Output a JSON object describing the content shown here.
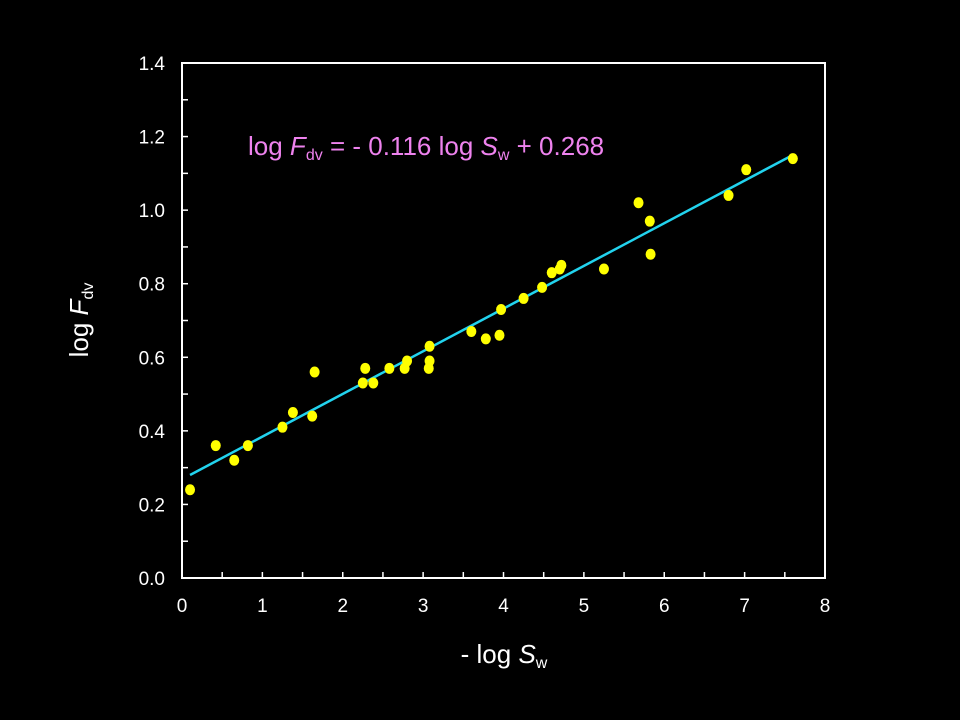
{
  "chart_data": {
    "type": "scatter",
    "xlim": [
      0,
      8
    ],
    "ylim": [
      0,
      1.4
    ],
    "xticks": [
      "0",
      "1",
      "2",
      "3",
      "4",
      "5",
      "6",
      "7",
      "8"
    ],
    "yticks": [
      "0.0",
      "0.2",
      "0.4",
      "0.6",
      "0.8",
      "1.0",
      "1.2",
      "1.4"
    ],
    "xlabel": {
      "prefix": "- log ",
      "var": "S",
      "sub": "w"
    },
    "ylabel": {
      "prefix": "log ",
      "var": "F",
      "sub": "dv"
    },
    "equation": {
      "p1": "log ",
      "v1": "F",
      "s1": "dv",
      "p2": " = - 0.116 log ",
      "v2": "S",
      "s2": "w",
      "p3": " + 0.268"
    },
    "fit_line": {
      "x": [
        0.1,
        7.6
      ],
      "y": [
        0.28,
        1.15
      ]
    },
    "points": {
      "x": [
        0.1,
        0.42,
        0.65,
        0.82,
        1.25,
        1.38,
        1.62,
        1.65,
        2.25,
        2.28,
        2.38,
        2.58,
        2.77,
        2.8,
        3.07,
        3.08,
        3.08,
        3.6,
        3.78,
        3.95,
        3.97,
        4.25,
        4.48,
        4.6,
        4.7,
        4.72,
        5.25,
        5.68,
        5.82,
        5.83,
        6.8,
        7.02,
        7.6
      ],
      "y": [
        0.24,
        0.36,
        0.32,
        0.36,
        0.41,
        0.45,
        0.44,
        0.56,
        0.53,
        0.57,
        0.53,
        0.57,
        0.57,
        0.59,
        0.57,
        0.59,
        0.63,
        0.67,
        0.65,
        0.66,
        0.73,
        0.76,
        0.79,
        0.83,
        0.84,
        0.85,
        0.84,
        1.02,
        0.97,
        0.88,
        1.04,
        1.11,
        1.14
      ]
    },
    "colors": {
      "points": "#ffff00",
      "line": "#22d3ee",
      "equation": "#ee82ee",
      "axes": "#ffffff",
      "background": "#000000"
    },
    "grid": false
  }
}
